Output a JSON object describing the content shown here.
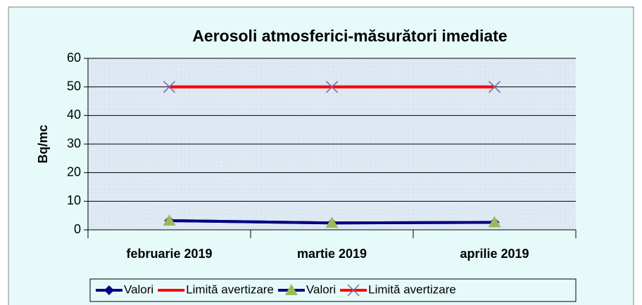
{
  "chart_data": {
    "type": "line",
    "title": "Aerosoli atmosferici-măsurători imediate",
    "y_label": "Bq/mc",
    "categories": [
      "februarie 2019",
      "martie 2019",
      "aprilie 2019"
    ],
    "series": [
      {
        "name": "Valori",
        "color": "#000080",
        "marker": "diamond",
        "marker_color": "#000080",
        "values": [
          3.2,
          2.4,
          2.6
        ]
      },
      {
        "name": "Limită avertizare",
        "color": "#ff0000",
        "values": [
          50,
          50,
          50
        ]
      },
      {
        "name": "Valori",
        "color": "#000080",
        "marker": "triangle",
        "marker_color": "#9bbb59",
        "values": [
          3.2,
          2.4,
          2.6
        ]
      },
      {
        "name": "Limită avertizare",
        "color": "#ff0000",
        "marker": "x",
        "marker_color": "#8064a2",
        "values": [
          50,
          50,
          50
        ]
      }
    ],
    "ylim": [
      0,
      60
    ],
    "yticks": [
      0,
      10,
      20,
      30,
      40,
      50,
      60
    ],
    "grid": true,
    "legend": "bottom"
  }
}
